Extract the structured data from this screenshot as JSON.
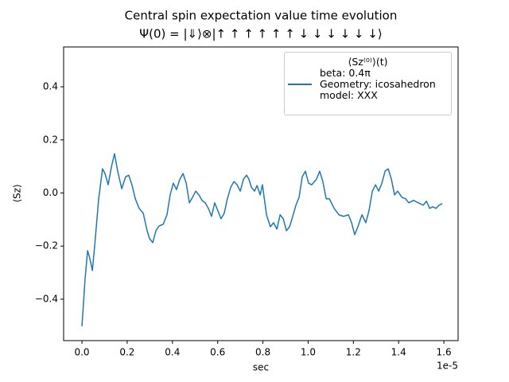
{
  "chart_data": {
    "type": "line",
    "title": "Central spin expectation value time evolution",
    "subtitle": "Ψ(0) = |⇓⟩⊗|↑ ↑ ↑ ↑ ↑ ↑ ↓ ↓ ↓ ↓ ↓ ↓⟩",
    "x_label": "sec",
    "x_offset_label": "1e-5",
    "y_label": "⟨Sz⟩",
    "legend_title": "⟨Sz⁽⁰⁾⟩(t)",
    "legend": "upper right",
    "x": [
      0,
      0.014,
      0.025,
      0.035,
      0.046,
      0.056,
      0.074,
      0.091,
      0.102,
      0.116,
      0.13,
      0.144,
      0.158,
      0.176,
      0.193,
      0.207,
      0.222,
      0.236,
      0.253,
      0.271,
      0.288,
      0.299,
      0.313,
      0.327,
      0.341,
      0.359,
      0.376,
      0.39,
      0.404,
      0.418,
      0.433,
      0.447,
      0.461,
      0.475,
      0.489,
      0.503,
      0.517,
      0.531,
      0.545,
      0.559,
      0.573,
      0.587,
      0.601,
      0.615,
      0.629,
      0.643,
      0.658,
      0.672,
      0.686,
      0.7,
      0.714,
      0.728,
      0.738,
      0.749,
      0.763,
      0.774,
      0.788,
      0.798,
      0.816,
      0.833,
      0.847,
      0.862,
      0.876,
      0.89,
      0.904,
      0.918,
      0.932,
      0.946,
      0.96,
      0.974,
      0.988,
      1.002,
      1.016,
      1.037,
      1.051,
      1.065,
      1.08,
      1.094,
      1.115,
      1.136,
      1.157,
      1.178,
      1.192,
      1.206,
      1.22,
      1.238,
      1.255,
      1.269,
      1.284,
      1.298,
      1.312,
      1.326,
      1.34,
      1.354,
      1.368,
      1.382,
      1.396,
      1.414,
      1.431,
      1.445,
      1.466,
      1.487,
      1.509,
      1.523,
      1.537,
      1.551,
      1.565,
      1.579,
      1.593
    ],
    "series": [
      {
        "name": "beta: 0.4π\nGeometry: icosahedron\nmodel: XXX",
        "color": "#1f77b4",
        "values": [
          -0.502,
          -0.322,
          -0.217,
          -0.247,
          -0.292,
          -0.202,
          -0.022,
          0.091,
          0.073,
          0.031,
          0.097,
          0.148,
          0.082,
          0.016,
          0.061,
          0.067,
          0.028,
          -0.022,
          -0.058,
          -0.076,
          -0.142,
          -0.172,
          -0.187,
          -0.142,
          -0.124,
          -0.118,
          -0.082,
          -0.007,
          0.037,
          0.013,
          0.052,
          0.073,
          0.037,
          -0.037,
          -0.016,
          0.007,
          -0.007,
          -0.028,
          -0.037,
          -0.058,
          -0.088,
          -0.037,
          -0.067,
          -0.097,
          -0.076,
          -0.022,
          0.022,
          0.043,
          0.031,
          0.007,
          0.052,
          0.067,
          0.052,
          0.022,
          0.007,
          0.028,
          -0.007,
          0.031,
          -0.082,
          -0.127,
          -0.112,
          -0.136,
          -0.082,
          -0.097,
          -0.142,
          -0.127,
          -0.088,
          -0.046,
          -0.016,
          0.061,
          0.082,
          0.037,
          0.031,
          0.052,
          0.082,
          0.043,
          -0.022,
          -0.022,
          -0.058,
          -0.082,
          -0.088,
          -0.082,
          -0.112,
          -0.157,
          -0.127,
          -0.082,
          -0.112,
          -0.067,
          0.007,
          0.031,
          0.007,
          0.037,
          0.082,
          0.091,
          0.052,
          -0.007,
          0.007,
          -0.016,
          -0.022,
          -0.037,
          -0.028,
          -0.037,
          -0.046,
          -0.031,
          -0.058,
          -0.052,
          -0.058,
          -0.046,
          -0.04
        ]
      }
    ],
    "xlim": [
      -0.081,
      1.663
    ],
    "ylim": [
      -0.556,
      0.55
    ],
    "xticks": [
      {
        "value": 0,
        "label": "0.0"
      },
      {
        "value": 0.2,
        "label": "0.2"
      },
      {
        "value": 0.4,
        "label": "0.4"
      },
      {
        "value": 0.6,
        "label": "0.6"
      },
      {
        "value": 0.8,
        "label": "0.8"
      },
      {
        "value": 1,
        "label": "1.0"
      },
      {
        "value": 1.2,
        "label": "1.2"
      },
      {
        "value": 1.4,
        "label": "1.4"
      },
      {
        "value": 1.6,
        "label": "1.6"
      }
    ],
    "yticks": [
      {
        "value": -0.4,
        "label": "−0.4"
      },
      {
        "value": -0.2,
        "label": "−0.2"
      },
      {
        "value": 0,
        "label": "0.0"
      },
      {
        "value": 0.2,
        "label": "0.2"
      },
      {
        "value": 0.4,
        "label": "0.4"
      }
    ],
    "grid": false
  }
}
